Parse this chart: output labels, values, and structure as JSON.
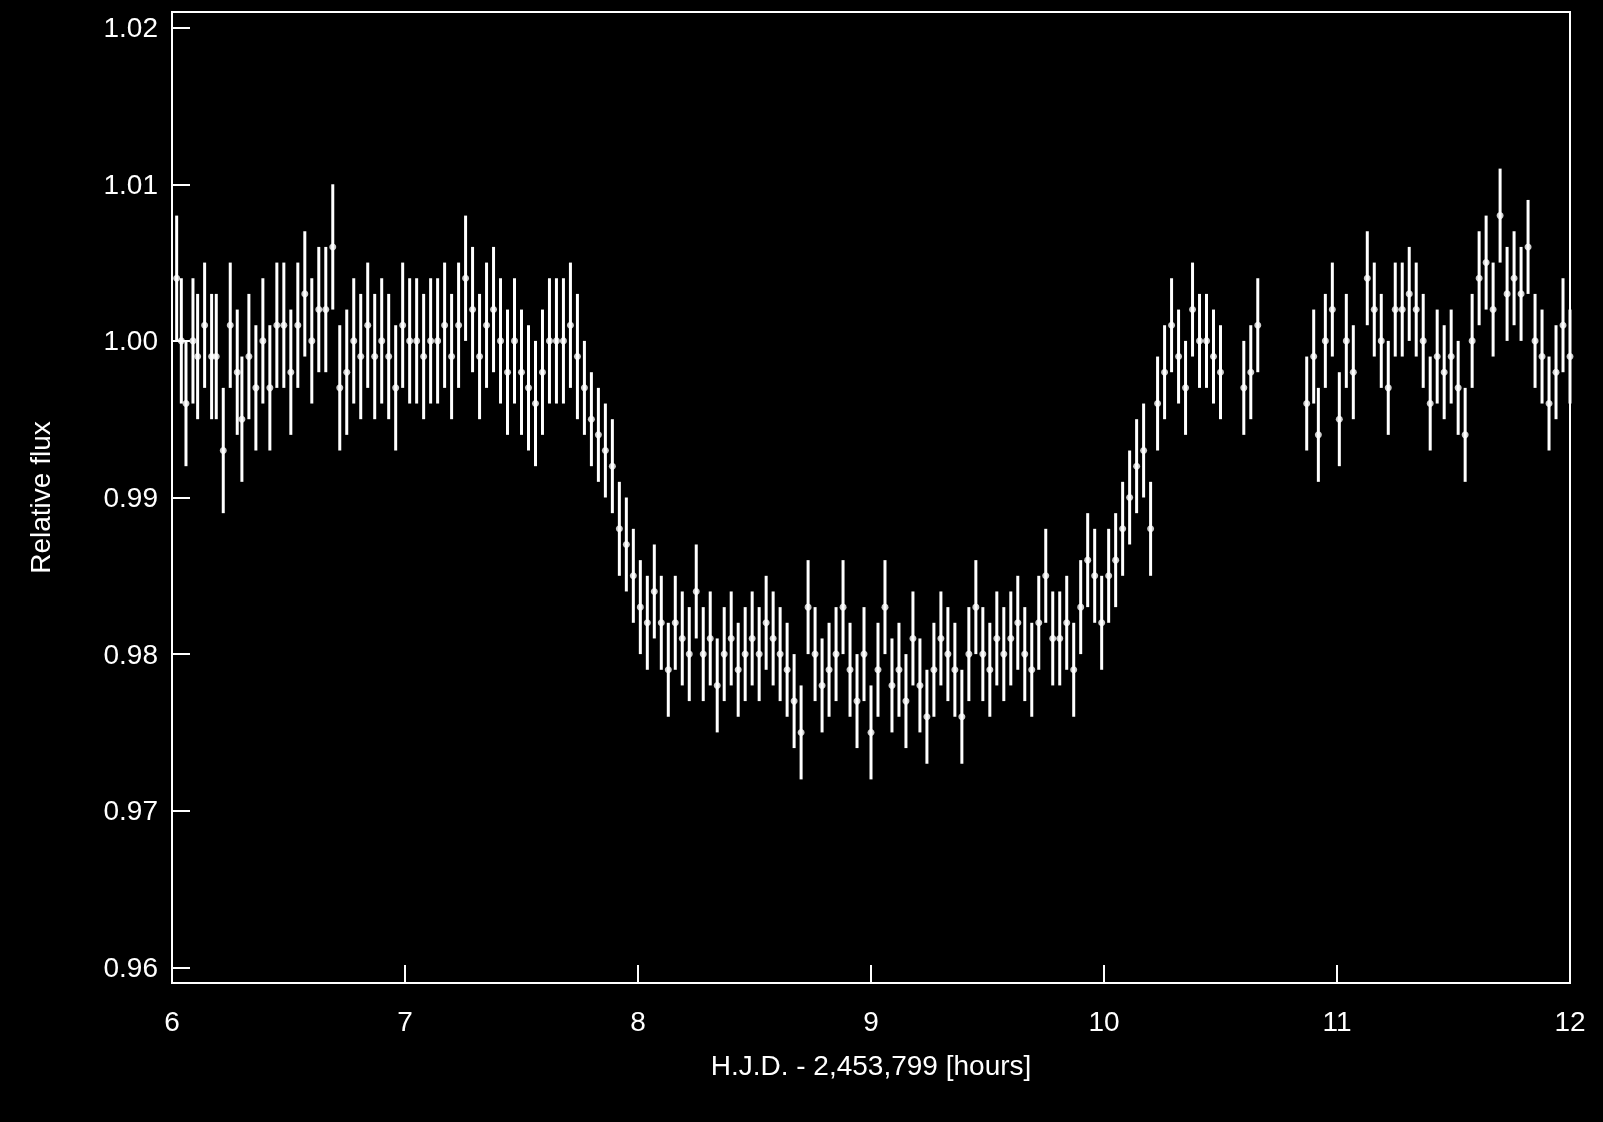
{
  "chart_data": {
    "type": "scatter",
    "xlabel": "H.J.D. - 2,453,799 [hours]",
    "ylabel": "Relative flux",
    "xlim": [
      6,
      12
    ],
    "xticks": [
      6,
      7,
      8,
      9,
      10,
      11,
      12
    ],
    "ylim": [
      0.959,
      1.021
    ],
    "yticks": [
      0.96,
      0.97,
      0.98,
      0.99,
      {
        "value": 1.0,
        "label": "1.00"
      },
      1.01,
      1.02
    ],
    "marker": "circle",
    "series": [
      {
        "color": "#ffffff",
        "x": [
          6.02,
          6.04,
          6.06,
          6.09,
          6.11,
          6.14,
          6.17,
          6.19,
          6.22,
          6.25,
          6.28,
          6.3,
          6.33,
          6.36,
          6.39,
          6.42,
          6.45,
          6.48,
          6.51,
          6.54,
          6.57,
          6.6,
          6.63,
          6.66,
          6.69,
          6.72,
          6.75,
          6.78,
          6.81,
          6.84,
          6.87,
          6.9,
          6.93,
          6.96,
          6.99,
          7.02,
          7.05,
          7.08,
          7.11,
          7.14,
          7.17,
          7.2,
          7.23,
          7.26,
          7.29,
          7.32,
          7.35,
          7.38,
          7.41,
          7.44,
          7.47,
          7.5,
          7.53,
          7.56,
          7.59,
          7.62,
          7.65,
          7.68,
          7.71,
          7.74,
          7.77,
          7.8,
          7.83,
          7.86,
          7.89,
          7.92,
          7.95,
          7.98,
          8.01,
          8.04,
          8.07,
          8.1,
          8.13,
          8.16,
          8.19,
          8.22,
          8.25,
          8.28,
          8.31,
          8.34,
          8.37,
          8.4,
          8.43,
          8.46,
          8.49,
          8.52,
          8.55,
          8.58,
          8.61,
          8.64,
          8.67,
          8.7,
          8.73,
          8.76,
          8.79,
          8.82,
          8.85,
          8.88,
          8.91,
          8.94,
          8.97,
          9.0,
          9.03,
          9.06,
          9.09,
          9.12,
          9.15,
          9.18,
          9.21,
          9.24,
          9.27,
          9.3,
          9.33,
          9.36,
          9.39,
          9.42,
          9.45,
          9.48,
          9.51,
          9.54,
          9.57,
          9.6,
          9.63,
          9.66,
          9.69,
          9.72,
          9.75,
          9.78,
          9.81,
          9.84,
          9.87,
          9.9,
          9.93,
          9.96,
          9.99,
          10.02,
          10.05,
          10.08,
          10.11,
          10.14,
          10.17,
          10.2,
          10.23,
          10.26,
          10.29,
          10.32,
          10.35,
          10.38,
          10.41,
          10.44,
          10.47,
          10.5,
          10.6,
          10.63,
          10.66,
          10.87,
          10.9,
          10.92,
          10.95,
          10.98,
          11.01,
          11.04,
          11.07,
          11.13,
          11.16,
          11.19,
          11.22,
          11.25,
          11.28,
          11.31,
          11.34,
          11.37,
          11.4,
          11.43,
          11.46,
          11.49,
          11.52,
          11.55,
          11.58,
          11.61,
          11.64,
          11.67,
          11.7,
          11.73,
          11.76,
          11.79,
          11.82,
          11.85,
          11.88,
          11.91,
          11.94,
          11.97,
          12.0
        ],
        "values": [
          1.004,
          1.0,
          0.996,
          1.0,
          0.999,
          1.001,
          0.999,
          0.999,
          0.993,
          1.001,
          0.998,
          0.995,
          0.999,
          0.997,
          1.0,
          0.997,
          1.001,
          1.001,
          0.998,
          1.001,
          1.003,
          1.0,
          1.002,
          1.002,
          1.006,
          0.997,
          0.998,
          1.0,
          0.999,
          1.001,
          0.999,
          1.0,
          0.999,
          0.997,
          1.001,
          1.0,
          1.0,
          0.999,
          1.0,
          1.0,
          1.001,
          0.999,
          1.001,
          1.004,
          1.002,
          0.999,
          1.001,
          1.002,
          1.0,
          0.998,
          1.0,
          0.998,
          0.997,
          0.996,
          0.998,
          1.0,
          1.0,
          1.0,
          1.001,
          0.999,
          0.997,
          0.995,
          0.994,
          0.993,
          0.992,
          0.988,
          0.987,
          0.985,
          0.983,
          0.982,
          0.984,
          0.982,
          0.979,
          0.982,
          0.981,
          0.98,
          0.984,
          0.98,
          0.981,
          0.978,
          0.98,
          0.981,
          0.979,
          0.98,
          0.981,
          0.98,
          0.982,
          0.981,
          0.98,
          0.979,
          0.977,
          0.975,
          0.983,
          0.98,
          0.978,
          0.979,
          0.98,
          0.983,
          0.979,
          0.977,
          0.98,
          0.975,
          0.979,
          0.983,
          0.978,
          0.979,
          0.977,
          0.981,
          0.978,
          0.976,
          0.979,
          0.981,
          0.98,
          0.979,
          0.976,
          0.98,
          0.983,
          0.98,
          0.979,
          0.981,
          0.98,
          0.981,
          0.982,
          0.98,
          0.979,
          0.982,
          0.985,
          0.981,
          0.981,
          0.982,
          0.979,
          0.983,
          0.986,
          0.985,
          0.982,
          0.985,
          0.986,
          0.988,
          0.99,
          0.992,
          0.993,
          0.988,
          0.996,
          0.998,
          1.001,
          0.999,
          0.997,
          1.002,
          1.0,
          1.0,
          0.999,
          0.998,
          0.997,
          0.998,
          1.001,
          0.996,
          0.999,
          0.994,
          1.0,
          1.002,
          0.995,
          1.0,
          0.998,
          1.004,
          1.002,
          1.0,
          0.997,
          1.002,
          1.002,
          1.003,
          1.002,
          1.0,
          0.996,
          0.999,
          0.998,
          0.999,
          0.997,
          0.994,
          1.0,
          1.004,
          1.005,
          1.002,
          1.008,
          1.003,
          1.004,
          1.003,
          1.006,
          1.0,
          0.999,
          0.996,
          0.998,
          1.001,
          0.999
        ],
        "errors": [
          0.004,
          0.004,
          0.004,
          0.004,
          0.004,
          0.004,
          0.004,
          0.004,
          0.004,
          0.004,
          0.004,
          0.004,
          0.004,
          0.004,
          0.004,
          0.004,
          0.004,
          0.004,
          0.004,
          0.004,
          0.004,
          0.004,
          0.004,
          0.004,
          0.004,
          0.004,
          0.004,
          0.004,
          0.004,
          0.004,
          0.004,
          0.004,
          0.004,
          0.004,
          0.004,
          0.004,
          0.004,
          0.004,
          0.004,
          0.004,
          0.004,
          0.004,
          0.004,
          0.004,
          0.004,
          0.004,
          0.004,
          0.004,
          0.004,
          0.004,
          0.004,
          0.004,
          0.004,
          0.004,
          0.004,
          0.004,
          0.004,
          0.004,
          0.004,
          0.004,
          0.003,
          0.003,
          0.003,
          0.003,
          0.003,
          0.003,
          0.003,
          0.003,
          0.003,
          0.003,
          0.003,
          0.003,
          0.003,
          0.003,
          0.003,
          0.003,
          0.003,
          0.003,
          0.003,
          0.003,
          0.003,
          0.003,
          0.003,
          0.003,
          0.003,
          0.003,
          0.003,
          0.003,
          0.003,
          0.003,
          0.003,
          0.003,
          0.003,
          0.003,
          0.003,
          0.003,
          0.003,
          0.003,
          0.003,
          0.003,
          0.003,
          0.003,
          0.003,
          0.003,
          0.003,
          0.003,
          0.003,
          0.003,
          0.003,
          0.003,
          0.003,
          0.003,
          0.003,
          0.003,
          0.003,
          0.003,
          0.003,
          0.003,
          0.003,
          0.003,
          0.003,
          0.003,
          0.003,
          0.003,
          0.003,
          0.003,
          0.003,
          0.003,
          0.003,
          0.003,
          0.003,
          0.003,
          0.003,
          0.003,
          0.003,
          0.003,
          0.003,
          0.003,
          0.003,
          0.003,
          0.003,
          0.003,
          0.003,
          0.003,
          0.003,
          0.003,
          0.003,
          0.003,
          0.003,
          0.003,
          0.003,
          0.003,
          0.003,
          0.003,
          0.003,
          0.003,
          0.003,
          0.003,
          0.003,
          0.003,
          0.003,
          0.003,
          0.003,
          0.003,
          0.003,
          0.003,
          0.003,
          0.003,
          0.003,
          0.003,
          0.003,
          0.003,
          0.003,
          0.003,
          0.003,
          0.003,
          0.003,
          0.003,
          0.003,
          0.003,
          0.003,
          0.003,
          0.003,
          0.003,
          0.003,
          0.003,
          0.003,
          0.003,
          0.003,
          0.003,
          0.003,
          0.003,
          0.003
        ]
      }
    ]
  }
}
